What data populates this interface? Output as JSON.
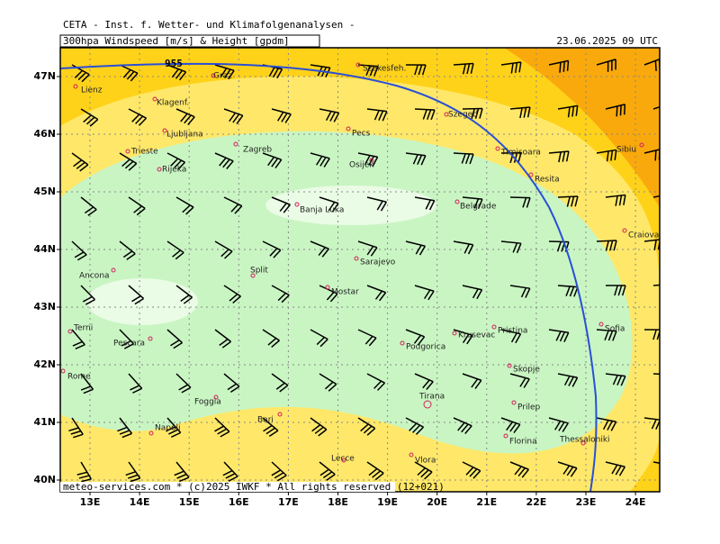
{
  "header": {
    "source": "CETA - Inst. f. Wetter- und Klimafolgenanalysen -",
    "title": "300hpa Windspeed [m/s] & Height [gpdm]",
    "date": "23.06.2025 09 UTC"
  },
  "contour_label": "955",
  "footer": "meteo-services.com * (c)2025 IWKF * All rights reserved (12+021)",
  "axes": {
    "lat": [
      "47N",
      "46N",
      "45N",
      "44N",
      "43N",
      "42N",
      "41N",
      "40N"
    ],
    "lon": [
      "13E",
      "14E",
      "15E",
      "16E",
      "17E",
      "18E",
      "19E",
      "20E",
      "21E",
      "22E",
      "23E",
      "24E"
    ]
  },
  "cities": [
    "Szekesfeh.",
    "Graz",
    "Lienz",
    "Klagenf.",
    "Ljubljana",
    "Trieste",
    "Zagreb",
    "Rijeka",
    "Pecs",
    "Szeged",
    "Timisoara",
    "Osijek",
    "Resita",
    "Sibiu",
    "Belgrade",
    "Banja Luka",
    "Craiova",
    "Sarajevo",
    "Ancona",
    "Split",
    "Mostar",
    "Terni",
    "Pescara",
    "Krusevac",
    "Pristina",
    "Sofia",
    "Podgorica",
    "Rome",
    "Skopje",
    "Tirana",
    "Foggia",
    "Prilep",
    "Bari",
    "Napoli",
    "Florina",
    "Thessaloniki",
    "Lecce",
    "Vlora"
  ]
}
